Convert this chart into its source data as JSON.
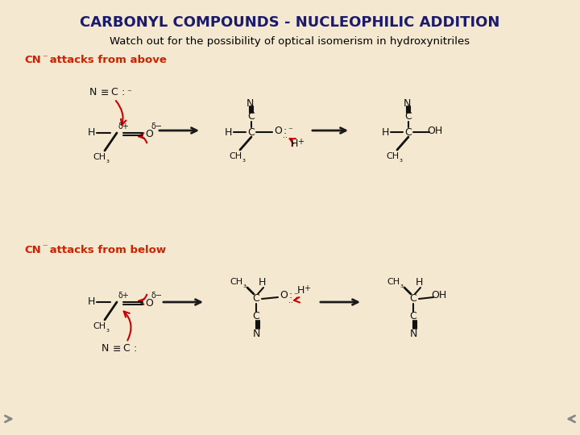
{
  "bg_color": "#f5e8d0",
  "title": "CARBONYL COMPOUNDS - NUCLEOPHILIC ADDITION",
  "title_color": "#1a1a6e",
  "subtitle": "Watch out for the possibility of optical isomerism in hydroxynitriles",
  "subtitle_color": "#000000",
  "cn_above_label": "CN⁻ attacks from above",
  "cn_below_label": "CN⁻ attacks from below",
  "label_color": "#cc2200",
  "arrow_color": "#1a1a1a",
  "red_arrow_color": "#cc0000",
  "molecule_color": "#111111",
  "nav_arrow_color": "#888888"
}
